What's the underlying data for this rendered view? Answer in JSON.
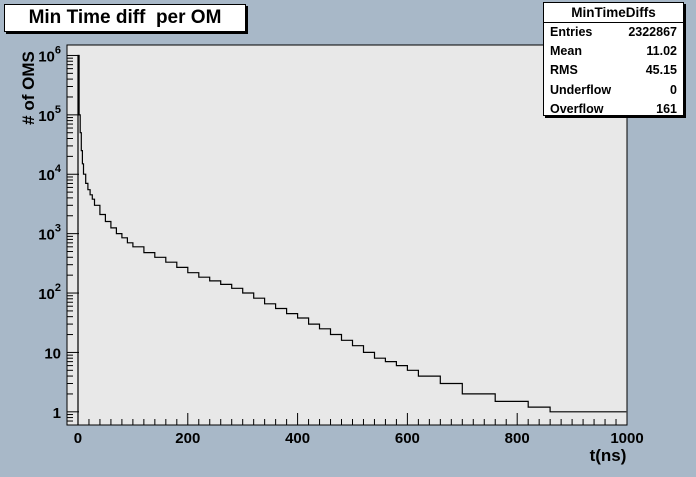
{
  "title": "Min Time diff  per OM",
  "stats": {
    "name": "MinTimeDiffs",
    "rows": [
      {
        "label": "Entries",
        "value": "2322867"
      },
      {
        "label": "Mean",
        "value": "11.02"
      },
      {
        "label": "RMS",
        "value": "45.15"
      },
      {
        "label": "Underflow",
        "value": "0"
      },
      {
        "label": "Overflow",
        "value": "161"
      }
    ]
  },
  "chart_data": {
    "type": "line",
    "subtype": "step-histogram",
    "title": "Min Time diff  per OM",
    "xlabel": "t(ns)",
    "ylabel": "# of OMS",
    "xlim": [
      -20,
      1000
    ],
    "ylim": [
      0.6,
      1500000
    ],
    "yscale": "log",
    "x_ticks": [
      "0",
      "200",
      "400",
      "600",
      "800",
      "1000"
    ],
    "y_ticks": [
      {
        "value": 1,
        "base": "1",
        "exp": ""
      },
      {
        "value": 10,
        "base": "10",
        "exp": ""
      },
      {
        "value": 100,
        "base": "10",
        "exp": "2"
      },
      {
        "value": 1000,
        "base": "10",
        "exp": "3"
      },
      {
        "value": 10000,
        "base": "10",
        "exp": "4"
      },
      {
        "value": 100000,
        "base": "10",
        "exp": "5"
      },
      {
        "value": 1000000,
        "base": "10",
        "exp": "6"
      }
    ],
    "grid": false,
    "series": [
      {
        "x": [
          0,
          2,
          4,
          6,
          8,
          10,
          14,
          18,
          22,
          26,
          30,
          40,
          50,
          60,
          70,
          80,
          90,
          100,
          120,
          140,
          160,
          180,
          200,
          220,
          240,
          260,
          280,
          300,
          320,
          340,
          360,
          380,
          400,
          420,
          440,
          460,
          480,
          500,
          520,
          540,
          560,
          580,
          600,
          620,
          640,
          660,
          680,
          700,
          720,
          740,
          760,
          780,
          800,
          820,
          840,
          860,
          880,
          900,
          920,
          940,
          960,
          980,
          995
        ],
        "y": [
          1000000,
          100000,
          50000,
          25000,
          15000,
          10000,
          7000,
          5500,
          4500,
          3800,
          3000,
          2100,
          1600,
          1250,
          1000,
          850,
          700,
          600,
          480,
          400,
          330,
          270,
          220,
          185,
          160,
          140,
          120,
          100,
          82,
          66,
          55,
          45,
          38,
          30,
          25,
          20,
          16,
          13,
          10,
          8,
          7,
          6,
          5,
          4,
          4,
          3,
          3,
          2,
          2,
          2,
          1.5,
          1.5,
          1.5,
          1.2,
          1.2,
          1,
          1,
          1,
          1,
          1,
          1,
          1,
          1
        ]
      }
    ]
  }
}
